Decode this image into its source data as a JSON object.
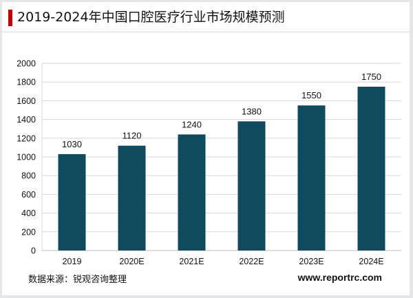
{
  "title": "2019-2024年中国口腔医疗行业市场规模预测",
  "source": "数据来源：锐观咨询整理",
  "watermark": "www.reportrc.com",
  "colors": {
    "bar": "#0f4a5f",
    "title_accent": "#c00000",
    "grid": "#d9d9d9"
  },
  "chart_data": {
    "type": "bar",
    "categories": [
      "2019",
      "2020E",
      "2021E",
      "2022E",
      "2023E",
      "2024E"
    ],
    "values": [
      1030,
      1120,
      1240,
      1380,
      1550,
      1750
    ],
    "data_labels": [
      "1030",
      "1120",
      "1240",
      "1380",
      "1550",
      "1750"
    ],
    "ylim": [
      0,
      2000
    ],
    "yticks": [
      0,
      200,
      400,
      600,
      800,
      1000,
      1200,
      1400,
      1600,
      1800,
      2000
    ],
    "grid": true,
    "legend": "none"
  }
}
